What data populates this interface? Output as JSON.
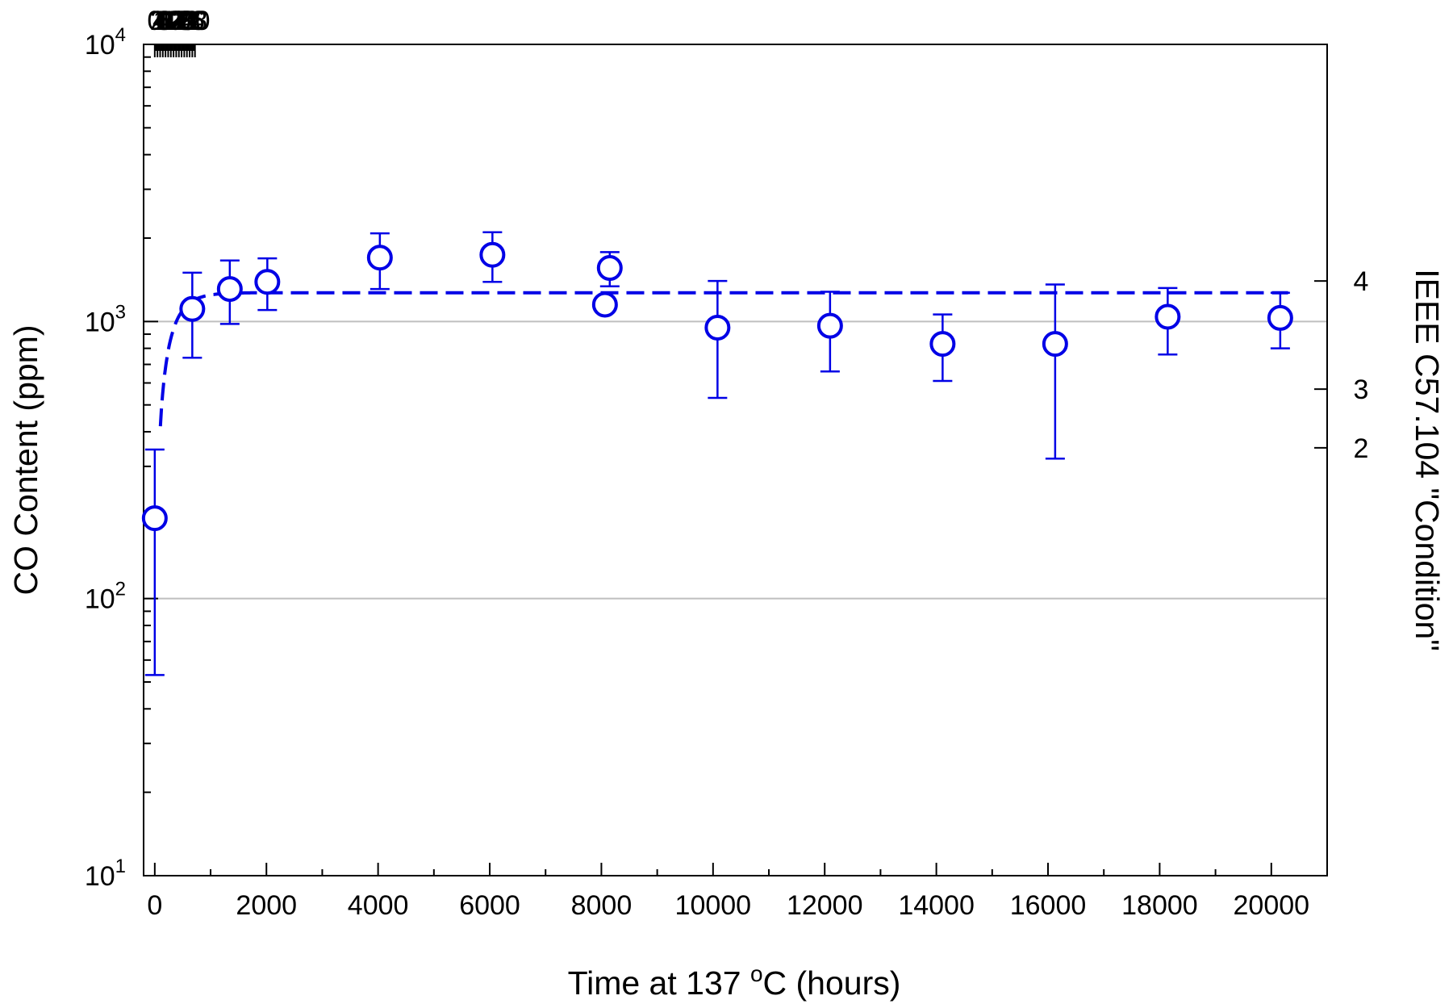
{
  "chart_data": {
    "type": "scatter",
    "title": "",
    "xlabel": {
      "prefix": "Time at 137 ",
      "superscript": "o",
      "suffix": "C (hours)"
    },
    "ylabel": "CO Content (ppm)",
    "y2label": "IEEE C57.104 \"Condition\"",
    "xlim": [
      -200,
      21000
    ],
    "ylim": [
      10,
      10000
    ],
    "yscale": "log",
    "x_ticks": [
      0,
      2000,
      4000,
      6000,
      8000,
      10000,
      12000,
      14000,
      16000,
      18000,
      20000
    ],
    "x_tick_labels": [
      "0",
      "2000",
      "4000",
      "6000",
      "8000",
      "10000",
      "12000",
      "14000",
      "16000",
      "18000",
      "20000"
    ],
    "x2_ticks_days": [
      0,
      2,
      4,
      6,
      8,
      10,
      12,
      14,
      16,
      18,
      20,
      22,
      24,
      26,
      28,
      30
    ],
    "x2_tick_labels": [
      "0",
      "2",
      "4",
      "6",
      "8",
      "10",
      "12",
      "14",
      "16",
      "18",
      "20",
      "22",
      "24",
      "26",
      "28",
      "30"
    ],
    "y_ticks": [
      {
        "value": 10,
        "base": "10",
        "exp": "1"
      },
      {
        "value": 100,
        "base": "10",
        "exp": "2"
      },
      {
        "value": 1000,
        "base": "10",
        "exp": "3"
      },
      {
        "value": 10000,
        "base": "10",
        "exp": "4"
      }
    ],
    "y2_ticks": [
      {
        "label": "2",
        "ppm": 350
      },
      {
        "label": "3",
        "ppm": 570
      },
      {
        "label": "4",
        "ppm": 1400
      }
    ],
    "gridlines_y": [
      100,
      1000
    ],
    "grid": false,
    "color": "#0000e6",
    "series": [
      {
        "points": [
          {
            "x": 0,
            "y": 195,
            "lo": 53,
            "hi": 345
          },
          {
            "x": 672,
            "y": 1110,
            "lo": 740,
            "hi": 1500
          },
          {
            "x": 1344,
            "y": 1310,
            "lo": 980,
            "hi": 1660
          },
          {
            "x": 2016,
            "y": 1390,
            "lo": 1100,
            "hi": 1690
          },
          {
            "x": 4032,
            "y": 1700,
            "lo": 1310,
            "hi": 2080
          },
          {
            "x": 6048,
            "y": 1740,
            "lo": 1390,
            "hi": 2100
          },
          {
            "x": 8064,
            "y": 1150,
            "lo": null,
            "hi": null
          },
          {
            "x": 8150,
            "y": 1560,
            "lo": 1340,
            "hi": 1780
          },
          {
            "x": 10080,
            "y": 950,
            "lo": 530,
            "hi": 1400
          },
          {
            "x": 12096,
            "y": 965,
            "lo": 660,
            "hi": 1280
          },
          {
            "x": 14112,
            "y": 830,
            "lo": 610,
            "hi": 1060
          },
          {
            "x": 16128,
            "y": 830,
            "lo": 320,
            "hi": 1360
          },
          {
            "x": 18144,
            "y": 1040,
            "lo": 760,
            "hi": 1320
          },
          {
            "x": 20160,
            "y": 1030,
            "lo": 800,
            "hi": 1270
          }
        ]
      },
      {
        "fit": true,
        "style": "dashed",
        "y_asymptote": 1270,
        "tau_hours": 250,
        "x_start": 100,
        "x_end": 20300
      }
    ]
  }
}
